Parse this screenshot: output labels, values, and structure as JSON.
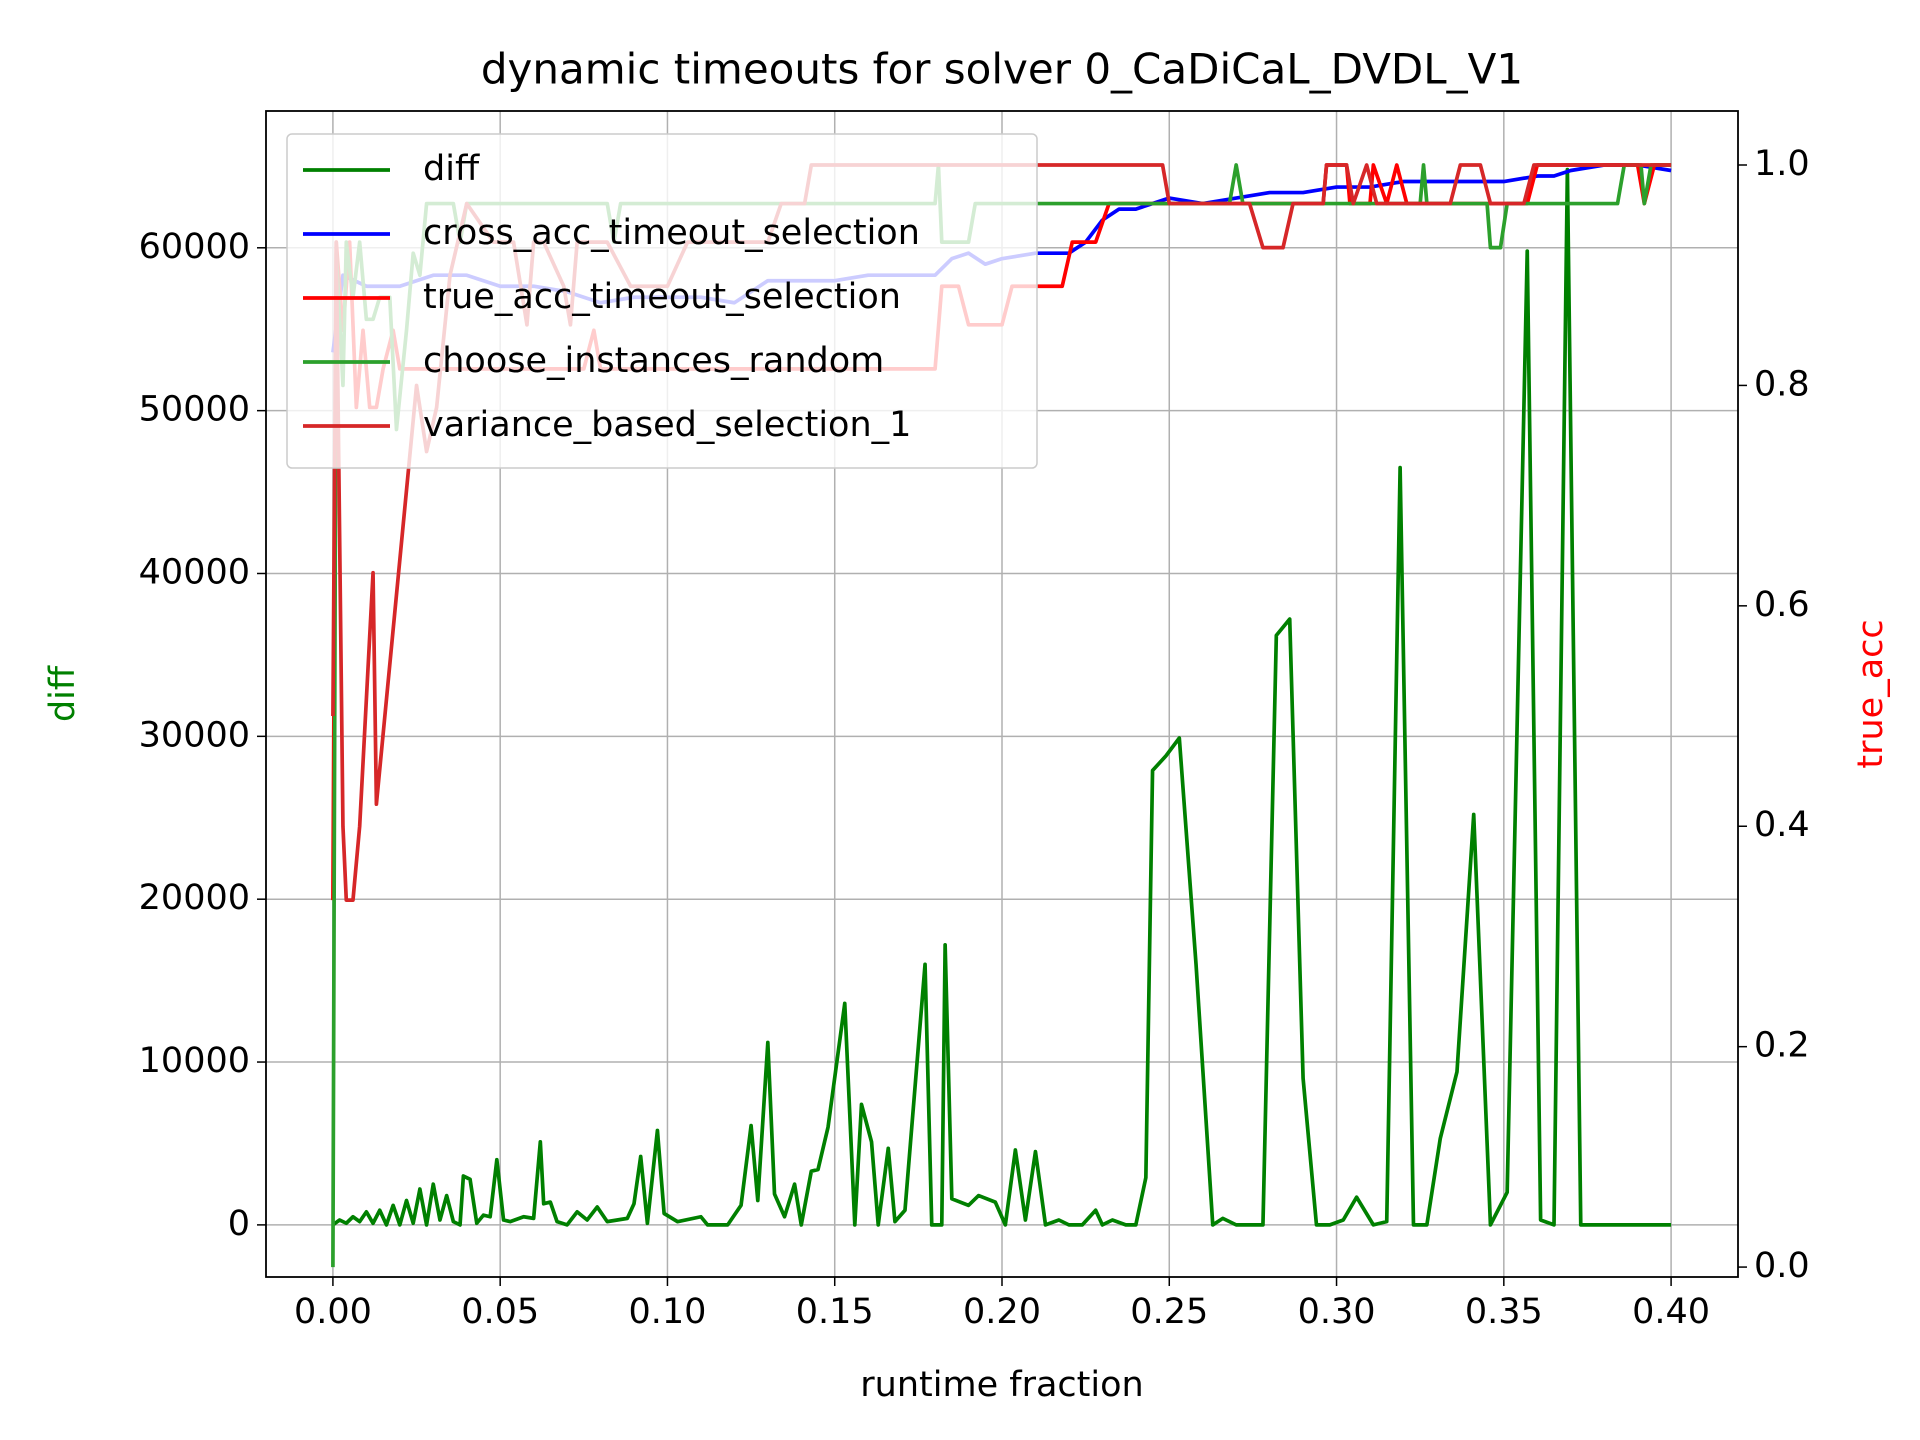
{
  "chart_data": {
    "type": "line",
    "title": "dynamic timeouts for solver 0_CaDiCaL_DVDL_V1",
    "xlabel": "runtime fraction",
    "ylabel": "diff",
    "ylabel_color": "#008000",
    "y2label": "true_acc",
    "y2label_color": "#ff0000",
    "xlim": [
      -0.02,
      0.42
    ],
    "ylim": [
      -3200,
      68400
    ],
    "y2lim": [
      -0.009,
      1.049
    ],
    "xticks": [
      {
        "value": 0,
        "label": "0.00"
      },
      {
        "value": 0.05,
        "label": "0.05"
      },
      {
        "value": 0.1,
        "label": "0.10"
      },
      {
        "value": 0.15,
        "label": "0.15"
      },
      {
        "value": 0.2,
        "label": "0.20"
      },
      {
        "value": 0.25,
        "label": "0.25"
      },
      {
        "value": 0.3,
        "label": "0.30"
      },
      {
        "value": 0.35,
        "label": "0.35"
      },
      {
        "value": 0.4,
        "label": "0.40"
      }
    ],
    "yticks": [
      0,
      10000,
      20000,
      30000,
      40000,
      50000,
      60000
    ],
    "y2ticks": [
      {
        "value": 0,
        "label": "0.0"
      },
      {
        "value": 0.2,
        "label": "0.2"
      },
      {
        "value": 0.4,
        "label": "0.4"
      },
      {
        "value": 0.6,
        "label": "0.6"
      },
      {
        "value": 0.8,
        "label": "0.8"
      },
      {
        "value": 1,
        "label": "1.0"
      }
    ],
    "grid": true,
    "legend": "upper left",
    "series": [
      {
        "name": "diff",
        "color": "#008000",
        "axis": "y",
        "x": [
          0,
          0.002,
          0.004,
          0.006,
          0.008,
          0.01,
          0.012,
          0.014,
          0.016,
          0.018,
          0.02,
          0.022,
          0.024,
          0.026,
          0.028,
          0.03,
          0.032,
          0.034,
          0.036,
          0.038,
          0.039,
          0.041,
          0.043,
          0.045,
          0.047,
          0.049,
          0.051,
          0.053,
          0.057,
          0.06,
          0.062,
          0.063,
          0.065,
          0.067,
          0.07,
          0.073,
          0.076,
          0.079,
          0.082,
          0.088,
          0.09,
          0.092,
          0.094,
          0.097,
          0.099,
          0.103,
          0.11,
          0.112,
          0.118,
          0.122,
          0.125,
          0.127,
          0.13,
          0.132,
          0.135,
          0.138,
          0.14,
          0.143,
          0.145,
          0.148,
          0.153,
          0.156,
          0.158,
          0.161,
          0.163,
          0.166,
          0.168,
          0.171,
          0.177,
          0.179,
          0.182,
          0.183,
          0.185,
          0.19,
          0.193,
          0.198,
          0.201,
          0.204,
          0.207,
          0.21,
          0.213,
          0.217,
          0.22,
          0.224,
          0.228,
          0.23,
          0.233,
          0.237,
          0.24,
          0.243,
          0.245,
          0.249,
          0.253,
          0.258,
          0.263,
          0.266,
          0.27,
          0.278,
          0.282,
          0.286,
          0.29,
          0.294,
          0.298,
          0.302,
          0.306,
          0.311,
          0.315,
          0.319,
          0.323,
          0.327,
          0.331,
          0.336,
          0.341,
          0.346,
          0.351,
          0.357,
          0.361,
          0.365,
          0.369,
          0.373,
          0.4
        ],
        "values": [
          0,
          300,
          100,
          500,
          200,
          800,
          100,
          900,
          0,
          1200,
          0,
          1500,
          100,
          2200,
          0,
          2500,
          300,
          1800,
          200,
          0,
          3000,
          2800,
          100,
          600,
          500,
          4000,
          300,
          200,
          500,
          400,
          5100,
          1300,
          1400,
          200,
          0,
          800,
          300,
          1100,
          200,
          400,
          1300,
          4200,
          100,
          5800,
          700,
          200,
          500,
          0,
          0,
          1200,
          6100,
          1500,
          11200,
          1900,
          500,
          2500,
          0,
          3300,
          3400,
          6000,
          13600,
          0,
          7400,
          5100,
          0,
          4700,
          200,
          900,
          16000,
          0,
          0,
          17200,
          1600,
          1200,
          1800,
          1400,
          0,
          4600,
          300,
          4500,
          0,
          300,
          0,
          0,
          900,
          0,
          300,
          0,
          0,
          2900,
          27900,
          28800,
          29900,
          16000,
          0,
          400,
          0,
          0,
          36200,
          37200,
          9000,
          0,
          0,
          300,
          1700,
          0,
          200,
          46500,
          0,
          0,
          5300,
          9400,
          25200,
          0,
          2000,
          59800,
          300,
          0,
          64800,
          0,
          0
        ]
      },
      {
        "name": "cross_acc_timeout_selection",
        "color": "#0000ff",
        "axis": "y2",
        "x": [
          0,
          0.003,
          0.01,
          0.02,
          0.03,
          0.04,
          0.05,
          0.06,
          0.07,
          0.08,
          0.09,
          0.1,
          0.11,
          0.12,
          0.125,
          0.13,
          0.14,
          0.15,
          0.16,
          0.17,
          0.18,
          0.185,
          0.19,
          0.195,
          0.2,
          0.21,
          0.22,
          0.225,
          0.23,
          0.235,
          0.24,
          0.25,
          0.26,
          0.27,
          0.28,
          0.29,
          0.3,
          0.31,
          0.32,
          0.33,
          0.34,
          0.35,
          0.36,
          0.365,
          0.37,
          0.38,
          0.39,
          0.4
        ],
        "values": [
          0.83,
          0.9,
          0.89,
          0.89,
          0.9,
          0.9,
          0.89,
          0.89,
          0.885,
          0.875,
          0.88,
          0.88,
          0.88,
          0.875,
          0.885,
          0.895,
          0.895,
          0.895,
          0.9,
          0.9,
          0.9,
          0.915,
          0.92,
          0.91,
          0.915,
          0.92,
          0.92,
          0.93,
          0.95,
          0.96,
          0.96,
          0.97,
          0.965,
          0.97,
          0.975,
          0.975,
          0.98,
          0.98,
          0.985,
          0.985,
          0.985,
          0.985,
          0.99,
          0.99,
          0.995,
          1,
          1,
          0.995
        ]
      },
      {
        "name": "true_acc_timeout_selection",
        "color": "#ff0000",
        "axis": "y2",
        "x": [
          0,
          0.001,
          0.003,
          0.005,
          0.007,
          0.009,
          0.011,
          0.013,
          0.015,
          0.018,
          0.02,
          0.075,
          0.078,
          0.08,
          0.18,
          0.182,
          0.187,
          0.19,
          0.2,
          0.203,
          0.218,
          0.221,
          0.228,
          0.232,
          0.296,
          0.297,
          0.303,
          0.304,
          0.31,
          0.311,
          0.315,
          0.318,
          0.321,
          0.357,
          0.36,
          0.39,
          0.392,
          0.395,
          0.4
        ],
        "values": [
          0.333,
          0.93,
          0.85,
          0.93,
          0.78,
          0.85,
          0.78,
          0.78,
          0.815,
          0.85,
          0.815,
          0.815,
          0.85,
          0.815,
          0.815,
          0.89,
          0.89,
          0.855,
          0.855,
          0.89,
          0.89,
          0.93,
          0.93,
          0.965,
          0.965,
          1,
          1,
          0.965,
          0.965,
          1,
          0.965,
          1,
          0.965,
          0.965,
          1,
          1,
          0.965,
          1,
          1
        ]
      },
      {
        "name": "choose_instances_random",
        "color": "#2ca02c",
        "axis": "y2",
        "x": [
          0,
          0.001,
          0.003,
          0.004,
          0.006,
          0.008,
          0.01,
          0.012,
          0.014,
          0.017,
          0.019,
          0.022,
          0.024,
          0.026,
          0.028,
          0.036,
          0.038,
          0.04,
          0.082,
          0.084,
          0.086,
          0.18,
          0.181,
          0.182,
          0.19,
          0.192,
          0.268,
          0.27,
          0.272,
          0.325,
          0.326,
          0.327,
          0.345,
          0.346,
          0.349,
          0.351,
          0.384,
          0.386,
          0.391,
          0.392,
          0.394,
          0.4
        ],
        "values": [
          0,
          0.92,
          0.8,
          0.93,
          0.88,
          0.93,
          0.86,
          0.86,
          0.88,
          0.88,
          0.76,
          0.85,
          0.92,
          0.9,
          0.965,
          0.965,
          0.93,
          0.965,
          0.965,
          0.93,
          0.965,
          0.965,
          1,
          0.93,
          0.93,
          0.965,
          0.965,
          1,
          0.965,
          0.965,
          1,
          0.965,
          0.965,
          0.925,
          0.925,
          0.965,
          0.965,
          1,
          1,
          0.965,
          1,
          1
        ]
      },
      {
        "name": "variance_based_selection_1",
        "color": "#d62728",
        "axis": "y2",
        "x": [
          0,
          0.001,
          0.003,
          0.004,
          0.006,
          0.008,
          0.012,
          0.013,
          0.025,
          0.028,
          0.031,
          0.035,
          0.04,
          0.048,
          0.054,
          0.058,
          0.06,
          0.063,
          0.069,
          0.071,
          0.073,
          0.082,
          0.089,
          0.1,
          0.106,
          0.13,
          0.134,
          0.141,
          0.143,
          0.248,
          0.25,
          0.274,
          0.278,
          0.284,
          0.287,
          0.296,
          0.297,
          0.303,
          0.305,
          0.309,
          0.312,
          0.334,
          0.337,
          0.343,
          0.346,
          0.356,
          0.359,
          0.4
        ],
        "values": [
          0.5,
          0.93,
          0.4,
          0.333,
          0.333,
          0.4,
          0.63,
          0.42,
          0.8,
          0.74,
          0.78,
          0.9,
          0.965,
          0.93,
          0.93,
          0.855,
          0.93,
          0.93,
          0.89,
          0.855,
          0.93,
          0.93,
          0.89,
          0.89,
          0.93,
          0.93,
          0.965,
          0.965,
          1,
          1,
          0.965,
          0.965,
          0.925,
          0.925,
          0.965,
          0.965,
          1,
          1,
          0.965,
          1,
          0.965,
          0.965,
          1,
          1,
          0.965,
          0.965,
          1,
          1
        ]
      }
    ]
  }
}
